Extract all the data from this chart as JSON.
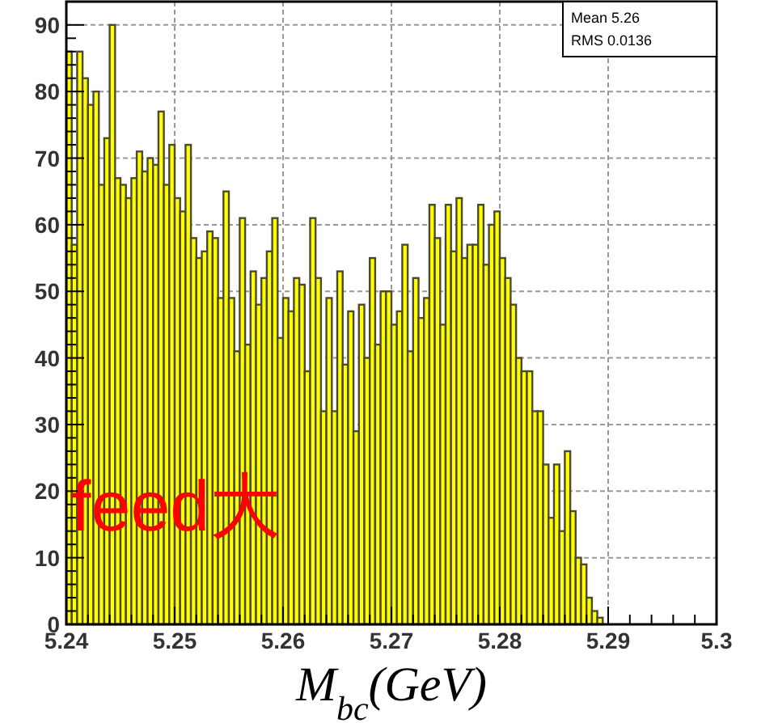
{
  "chart_data": {
    "type": "histogram",
    "xlabel": "M$_{bc}$(GeV)",
    "bins": [
      5.24,
      5.2405,
      5.241,
      5.2415,
      5.242,
      5.2425,
      5.243,
      5.2435,
      5.244,
      5.2445,
      5.245,
      5.2455,
      5.246,
      5.2465,
      5.247,
      5.2475,
      5.248,
      5.2485,
      5.249,
      5.2495,
      5.25,
      5.2505,
      5.251,
      5.2515,
      5.252,
      5.2525,
      5.253,
      5.2535,
      5.254,
      5.2545,
      5.255,
      5.2555,
      5.256,
      5.2565,
      5.257,
      5.2575,
      5.258,
      5.2585,
      5.259,
      5.2595,
      5.26,
      5.2605,
      5.261,
      5.2615,
      5.262,
      5.2625,
      5.263,
      5.2635,
      5.264,
      5.2645,
      5.265,
      5.2655,
      5.266,
      5.2665,
      5.267,
      5.2675,
      5.268,
      5.2685,
      5.269,
      5.2695,
      5.27,
      5.2705,
      5.271,
      5.2715,
      5.272,
      5.2725,
      5.273,
      5.2735,
      5.274,
      5.2745,
      5.275,
      5.2755,
      5.276,
      5.2765,
      5.277,
      5.2775,
      5.278,
      5.2785,
      5.279,
      5.2795,
      5.28,
      5.2805,
      5.281,
      5.2815,
      5.282,
      5.2825,
      5.283,
      5.2835,
      5.284,
      5.2845,
      5.285,
      5.2855,
      5.286,
      5.2865,
      5.287,
      5.2875,
      5.288,
      5.2885,
      5.289,
      5.2895,
      5.29
    ],
    "values": [
      86,
      57,
      86,
      82,
      78,
      80,
      66,
      73,
      90,
      67,
      66,
      64,
      67,
      71,
      68,
      70,
      69,
      77,
      66,
      72,
      64,
      62,
      72,
      58,
      55,
      56,
      59,
      58,
      49,
      65,
      49,
      41,
      61,
      42,
      53,
      48,
      52,
      56,
      61,
      43,
      49,
      47,
      52,
      51,
      38,
      61,
      52,
      32,
      49,
      32,
      53,
      39,
      47,
      29,
      48,
      40,
      55,
      42,
      50,
      50,
      45,
      47,
      57,
      41,
      52,
      46,
      49,
      63,
      58,
      45,
      63,
      56,
      64,
      55,
      57,
      57,
      63,
      54,
      60,
      62,
      55,
      52,
      48,
      40,
      38,
      38,
      32,
      32,
      24,
      16,
      24,
      14,
      26,
      17,
      10,
      9,
      4,
      2,
      1,
      0
    ],
    "color": "#ffff00",
    "xlim": [
      5.24,
      5.3
    ],
    "ylim": [
      0,
      93.5
    ],
    "xticks": [
      5.24,
      5.25,
      5.26,
      5.27,
      5.28,
      5.29,
      5.3
    ],
    "yticks": [
      0,
      10,
      20,
      30,
      40,
      50,
      60,
      70,
      80,
      90
    ],
    "grid": true,
    "annotations": [
      "Mean 5.26",
      "RMS 0.0136",
      "feed大"
    ]
  }
}
